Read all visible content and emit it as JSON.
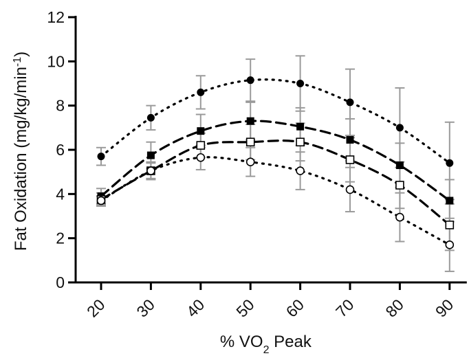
{
  "chart_data": {
    "type": "line",
    "title": "",
    "xlabel_main": "% VO",
    "xlabel_sub": "2",
    "xlabel_tail": " Peak",
    "ylabel_main": "Fat Oxidation (mg/kg/min",
    "ylabel_sup": "-1",
    "ylabel_tail": ")",
    "ylim": [
      0,
      12
    ],
    "yticks": [
      0,
      2,
      4,
      6,
      8,
      10,
      12
    ],
    "x": [
      20,
      30,
      40,
      50,
      60,
      70,
      80,
      90
    ],
    "grid": false,
    "legend": "none",
    "series": [
      {
        "marker": "filled-circle",
        "line": "dotted",
        "values": [
          5.7,
          7.45,
          8.6,
          9.15,
          9.0,
          8.15,
          7.0,
          5.4
        ],
        "errors": [
          0.4,
          0.55,
          0.75,
          0.95,
          1.25,
          1.5,
          1.8,
          1.85
        ]
      },
      {
        "marker": "filled-square",
        "line": "dashed",
        "values": [
          3.9,
          5.75,
          6.85,
          7.3,
          7.05,
          6.45,
          5.3,
          3.7
        ],
        "errors": [
          0.35,
          0.6,
          0.75,
          0.85,
          0.85,
          0.95,
          1.0,
          0.95
        ]
      },
      {
        "marker": "open-square",
        "line": "dashed",
        "values": [
          3.75,
          5.05,
          6.2,
          6.35,
          6.35,
          5.55,
          4.4,
          2.6
        ],
        "errors": [
          0.3,
          0.35,
          0.55,
          0.8,
          0.85,
          1.0,
          1.05,
          1.15
        ]
      },
      {
        "marker": "open-circle",
        "line": "dotted",
        "values": [
          3.7,
          5.05,
          5.65,
          5.45,
          5.05,
          4.2,
          2.95,
          1.7
        ],
        "errors": [
          0.2,
          0.4,
          0.55,
          0.65,
          0.85,
          1.0,
          1.1,
          1.2
        ]
      }
    ]
  }
}
